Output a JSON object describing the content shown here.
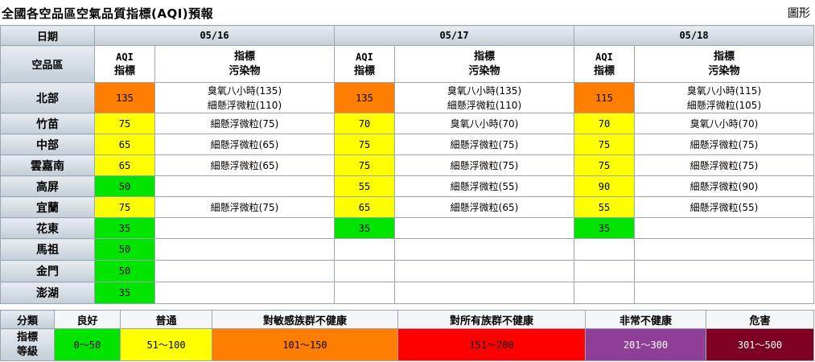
{
  "header": {
    "title": "全國各空品區空氣品質指標(AQI)預報",
    "graph_link": "圖形"
  },
  "table": {
    "date_label": "日期",
    "region_label": "空品區",
    "aqi_label": [
      "AQI",
      "指標"
    ],
    "pollutant_label": [
      "指標",
      "污染物"
    ],
    "dates": [
      "05/16",
      "05/17",
      "05/18"
    ],
    "rows": [
      {
        "region": "北部",
        "cells": [
          {
            "aqi": "135",
            "pol": [
              "臭氧八小時(135)",
              "細懸浮微粒(110)"
            ]
          },
          {
            "aqi": "135",
            "pol": [
              "臭氧八小時(135)",
              "細懸浮微粒(110)"
            ]
          },
          {
            "aqi": "115",
            "pol": [
              "臭氧八小時(115)",
              "細懸浮微粒(105)"
            ]
          }
        ]
      },
      {
        "region": "竹苗",
        "cells": [
          {
            "aqi": "75",
            "pol": [
              "細懸浮微粒(75)"
            ]
          },
          {
            "aqi": "70",
            "pol": [
              "臭氧八小時(70)"
            ]
          },
          {
            "aqi": "70",
            "pol": [
              "臭氧八小時(70)"
            ]
          }
        ]
      },
      {
        "region": "中部",
        "cells": [
          {
            "aqi": "65",
            "pol": [
              "細懸浮微粒(65)"
            ]
          },
          {
            "aqi": "75",
            "pol": [
              "細懸浮微粒(75)"
            ]
          },
          {
            "aqi": "75",
            "pol": [
              "細懸浮微粒(75)"
            ]
          }
        ]
      },
      {
        "region": "雲嘉南",
        "cells": [
          {
            "aqi": "65",
            "pol": [
              "細懸浮微粒(65)"
            ]
          },
          {
            "aqi": "75",
            "pol": [
              "細懸浮微粒(75)"
            ]
          },
          {
            "aqi": "75",
            "pol": [
              "細懸浮微粒(75)"
            ]
          }
        ]
      },
      {
        "region": "高屏",
        "cells": [
          {
            "aqi": "50",
            "pol": []
          },
          {
            "aqi": "55",
            "pol": [
              "細懸浮微粒(55)"
            ]
          },
          {
            "aqi": "90",
            "pol": [
              "細懸浮微粒(90)"
            ]
          }
        ]
      },
      {
        "region": "宜蘭",
        "cells": [
          {
            "aqi": "75",
            "pol": [
              "細懸浮微粒(75)"
            ]
          },
          {
            "aqi": "65",
            "pol": [
              "細懸浮微粒(65)"
            ]
          },
          {
            "aqi": "55",
            "pol": [
              "細懸浮微粒(55)"
            ]
          }
        ]
      },
      {
        "region": "花東",
        "cells": [
          {
            "aqi": "35",
            "pol": []
          },
          {
            "aqi": "35",
            "pol": []
          },
          {
            "aqi": "35",
            "pol": []
          }
        ]
      },
      {
        "region": "馬祖",
        "cells": [
          {
            "aqi": "50",
            "pol": []
          }
        ]
      },
      {
        "region": "金門",
        "cells": [
          {
            "aqi": "50",
            "pol": []
          }
        ]
      },
      {
        "region": "澎湖",
        "cells": [
          {
            "aqi": "35",
            "pol": []
          }
        ]
      }
    ]
  },
  "legend": {
    "category_label": "分類",
    "level_label": [
      "指標",
      "等級"
    ],
    "levels": [
      {
        "name": "良好",
        "range": "0～50",
        "color": "#00e400"
      },
      {
        "name": "普通",
        "range": "51～100",
        "color": "#ffff00"
      },
      {
        "name": "對敏感族群不健康",
        "range": "101～150",
        "color": "#ff7e00"
      },
      {
        "name": "對所有族群不健康",
        "range": "151～200",
        "color": "#ff0000"
      },
      {
        "name": "非常不健康",
        "range": "201～300",
        "color": "#8f3f97"
      },
      {
        "name": "危害",
        "range": "301～500",
        "color": "#7e0023"
      }
    ]
  }
}
